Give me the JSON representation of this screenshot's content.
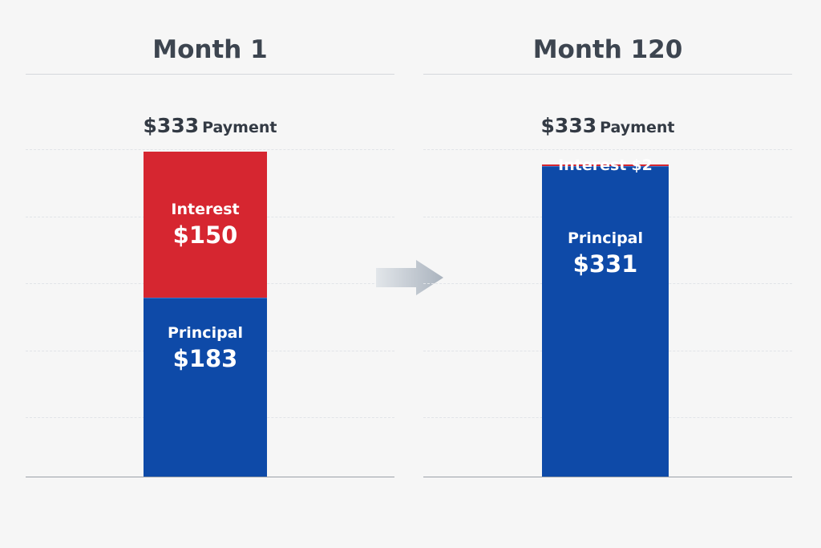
{
  "chart_data": [
    {
      "type": "bar",
      "stacked": true,
      "title": "Month 1",
      "total_label": {
        "amount": "$333",
        "label": "Payment"
      },
      "total": 333,
      "ylim": [
        0,
        333
      ],
      "grid": true,
      "segments": [
        {
          "name": "Principal",
          "value": 183,
          "value_label": "$183",
          "color": "#0e4aa8"
        },
        {
          "name": "Interest",
          "value": 150,
          "value_label": "$150",
          "color": "#d62630"
        }
      ]
    },
    {
      "type": "bar",
      "stacked": true,
      "title": "Month 120",
      "total_label": {
        "amount": "$333",
        "label": "Payment"
      },
      "total": 333,
      "ylim": [
        0,
        333
      ],
      "grid": true,
      "segments": [
        {
          "name": "Principal",
          "value": 331,
          "value_label": "$331",
          "color": "#0e4aa8"
        },
        {
          "name": "Interest",
          "value": 2,
          "value_label": "$2",
          "color": "#d62630"
        }
      ]
    }
  ],
  "arrow_icon": "arrow-right-icon",
  "colors": {
    "interest": "#d62630",
    "principal": "#0e4aa8",
    "title_text": "#3d4550",
    "arrow": "#b4bcc6"
  }
}
